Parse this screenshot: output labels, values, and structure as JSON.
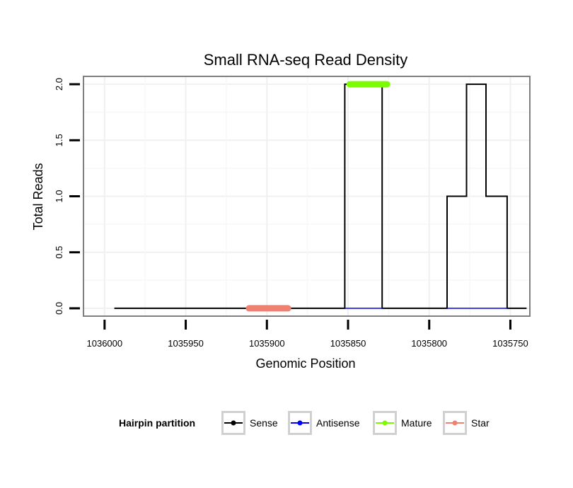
{
  "chart_data": {
    "type": "line",
    "title": "Small RNA-seq Read Density",
    "xlabel": "Genomic Position",
    "ylabel": "Total Reads",
    "x_reversed": true,
    "xlim": [
      1036013,
      1035738
    ],
    "ylim": [
      -0.07,
      2.07
    ],
    "x_ticks": [
      1036000,
      1035950,
      1035900,
      1035850,
      1035800,
      1035750
    ],
    "x_tick_labels": [
      "1036000",
      "1035950",
      "1035900",
      "1035850",
      "1035800",
      "1035750"
    ],
    "y_ticks": [
      0,
      0.5,
      1,
      1.5,
      2
    ],
    "y_tick_labels": [
      "0.0",
      "0.5",
      "1.0",
      "1.5",
      "2.0"
    ],
    "grid": true,
    "legend": {
      "title": "Hairpin partition",
      "position": "bottom",
      "entries": [
        {
          "label": "Sense",
          "color": "#000000"
        },
        {
          "label": "Antisense",
          "color": "#0000ff"
        },
        {
          "label": "Mature",
          "color": "#7cfc00"
        },
        {
          "label": "Star",
          "color": "#f08070"
        }
      ]
    },
    "series": [
      {
        "name": "Sense",
        "color": "#000000",
        "width": 2,
        "x": [
          1035994,
          1035852,
          1035852,
          1035829,
          1035829,
          1035789,
          1035789,
          1035777,
          1035777,
          1035765,
          1035765,
          1035752,
          1035752,
          1035740
        ],
        "y": [
          0,
          0,
          2,
          2,
          0,
          0,
          1,
          1,
          2,
          2,
          1,
          1,
          0,
          0
        ]
      },
      {
        "name": "Antisense",
        "color": "#0000ff",
        "width": 1.5,
        "segments": [
          [
            1035852,
            1035829
          ],
          [
            1035789,
            1035752
          ]
        ],
        "y": 0
      },
      {
        "name": "Mature",
        "color": "#7cfc00",
        "width": 9,
        "segments": [
          [
            1035849,
            1035826
          ]
        ],
        "y": 2
      },
      {
        "name": "Star",
        "color": "#f08070",
        "width": 9,
        "segments": [
          [
            1035911,
            1035887
          ]
        ],
        "y": 0
      }
    ]
  }
}
